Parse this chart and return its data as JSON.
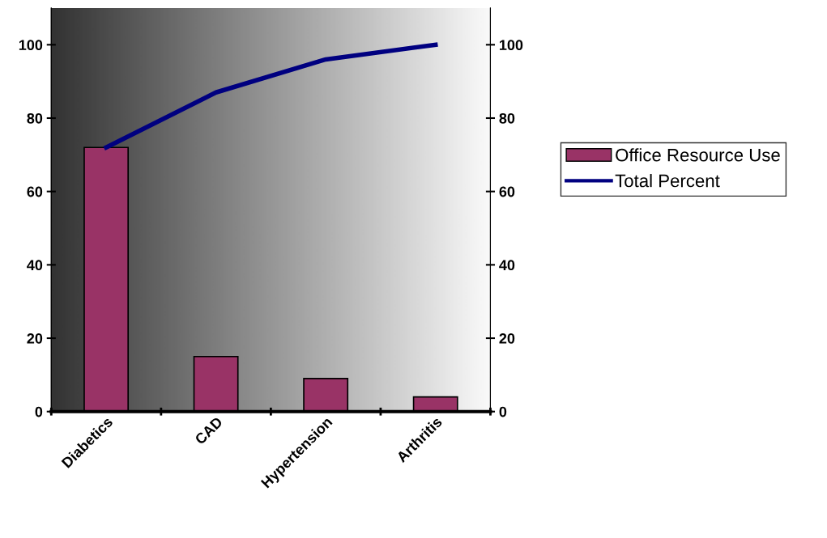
{
  "chart_data": {
    "type": "bar",
    "categories": [
      "Diabetics",
      "CAD",
      "Hypertension",
      "Arthritis"
    ],
    "series": [
      {
        "name": "Office Resource Use",
        "color": "#993366",
        "values": [
          72,
          15,
          9,
          4
        ]
      },
      {
        "name": "Total Percent",
        "type": "line",
        "color": "#000080",
        "values": [
          72,
          87,
          96,
          100
        ]
      }
    ],
    "ylim": [
      0,
      110
    ],
    "yticks": [
      0,
      20,
      40,
      60,
      80,
      100
    ],
    "y2lim": [
      0,
      110
    ],
    "y2ticks": [
      0,
      20,
      40,
      60,
      80,
      100
    ],
    "grid": false,
    "legend": "right",
    "marker": "none",
    "line_style": "solid"
  }
}
